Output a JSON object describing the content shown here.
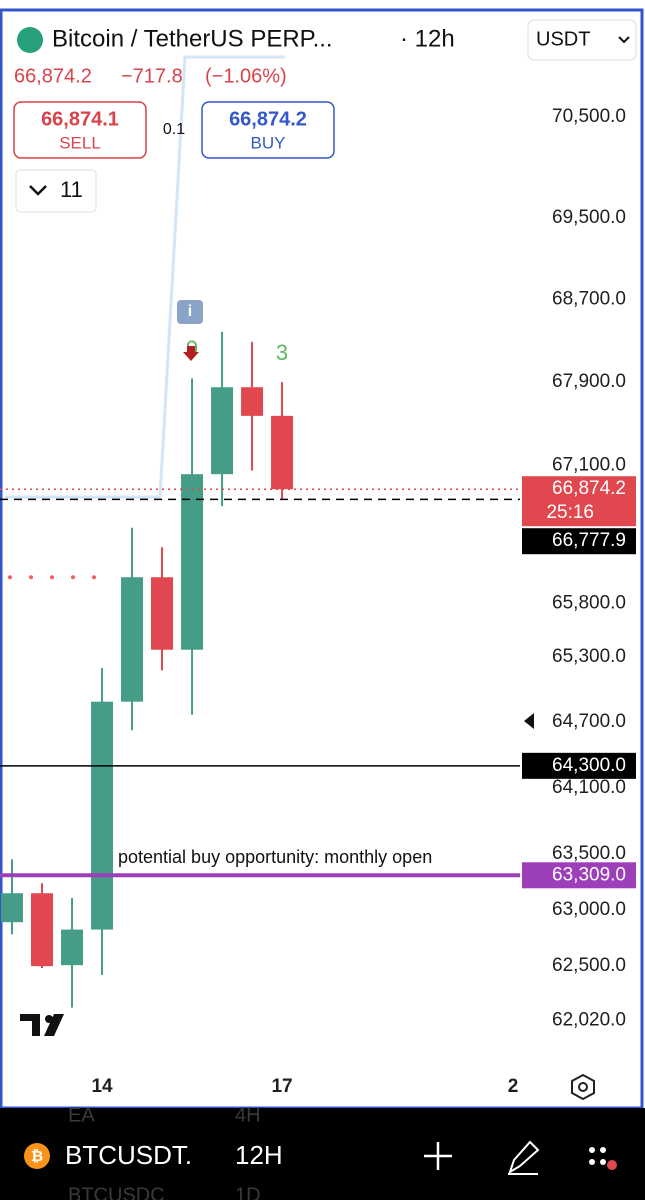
{
  "header": {
    "title": "Bitcoin / TetherUS PERP...",
    "interval": "· 12h",
    "currency": "USDT",
    "price": "66,874.2",
    "change": "−717.8",
    "change_pct": "(−1.06%)"
  },
  "trade": {
    "sell_price": "66,874.1",
    "sell": "SELL",
    "spread": "0.1",
    "buy_price": "66,874.2",
    "buy": "BUY"
  },
  "indicators_count": "11",
  "bottom_bar": {
    "symbol": "BTCUSDT.",
    "interval": "12H",
    "ghost_texts": [
      "EA",
      "4H",
      "BTCUSDC",
      "1D"
    ]
  },
  "chart_data": {
    "type": "candlestick",
    "log_scale": true,
    "x": [
      0,
      1,
      2,
      3,
      4,
      5,
      6,
      7,
      8,
      9
    ],
    "open": [
      62889,
      63148,
      62507,
      62823,
      64888,
      66044,
      65368,
      67017,
      67849,
      67574
    ],
    "high": [
      63452,
      63237,
      63105,
      65198,
      66510,
      66326,
      67934,
      68385,
      68287,
      67898
    ],
    "low": [
      62780,
      62482,
      62131,
      62419,
      64627,
      65177,
      64768,
      66714,
      67052,
      66771
    ],
    "close": [
      63148,
      62498,
      62823,
      64888,
      66044,
      65368,
      67017,
      67849,
      67574,
      66874.2
    ],
    "up_color": "#459d88",
    "down_color": "#e0474f",
    "xlim": [
      -0.4,
      16.93
    ],
    "xticks": [
      {
        "value": 3,
        "label": "14"
      },
      {
        "value": 9,
        "label": "17"
      },
      {
        "value": 16.7,
        "label": "2"
      }
    ],
    "ylim": [
      61540,
      71580
    ],
    "yticks": [
      {
        "value": 70500,
        "label": "70,500.0"
      },
      {
        "value": 69500,
        "label": "69,500.0"
      },
      {
        "value": 68700,
        "label": "68,700.0"
      },
      {
        "value": 67900,
        "label": "67,900.0"
      },
      {
        "value": 67100,
        "label": "67,100.0"
      },
      {
        "value": 65800,
        "label": "65,800.0"
      },
      {
        "value": 65300,
        "label": "65,300.0"
      },
      {
        "value": 64700,
        "label": "64,700.0"
      },
      {
        "value": 64100,
        "label": "64,100.0"
      },
      {
        "value": 63500,
        "label": "63,500.0"
      },
      {
        "value": 63000,
        "label": "63,000.0"
      },
      {
        "value": 62500,
        "label": "62,500.0"
      },
      {
        "value": 62020,
        "label": "62,020.0"
      }
    ],
    "hlines": [
      {
        "value": 66874.2,
        "label": "66,874.2",
        "timer": "25:16",
        "color": "#e0474f",
        "style": "dotted"
      },
      {
        "value": 66777.9,
        "label": "66,777.9",
        "color": "#000000",
        "style": "dashed"
      },
      {
        "value": 64300,
        "label": "64,300.0",
        "color": "#000000",
        "style": "solid"
      },
      {
        "value": 63309,
        "label": "63,309.0",
        "color": "#9c3fb8",
        "style": "solid",
        "annotation": "potential buy opportunity: monthly open"
      }
    ],
    "dotted_level": {
      "value": 66044,
      "color": "#f06060"
    },
    "markers": [
      {
        "x": 6,
        "text": "9",
        "color": "#5cb85c"
      },
      {
        "x": 9,
        "text": "3",
        "color": "#5cb85c"
      }
    ]
  }
}
